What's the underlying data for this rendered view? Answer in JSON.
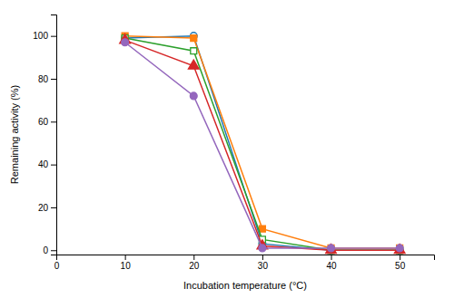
{
  "chart_data": {
    "type": "line",
    "xlabel": "Incubation temperature (°C)",
    "ylabel": "Remaining activity (%)",
    "x": [
      10,
      20,
      30,
      40,
      50
    ],
    "series": [
      {
        "values": [
          99,
          100,
          3,
          0,
          0
        ],
        "marker": "circle-open"
      },
      {
        "values": [
          100,
          99,
          10,
          1,
          1
        ],
        "marker": "square"
      },
      {
        "values": [
          99,
          93,
          5,
          0,
          0
        ],
        "marker": "square-open"
      },
      {
        "values": [
          98,
          86,
          2,
          0,
          0
        ],
        "marker": "triangle"
      },
      {
        "values": [
          97,
          72,
          1,
          1,
          1
        ],
        "marker": "circle"
      }
    ],
    "xlim": [
      0,
      55
    ],
    "ylim": [
      -2,
      110
    ],
    "xticks": [
      0,
      10,
      20,
      30,
      40,
      50
    ],
    "yticks": [
      0,
      20,
      40,
      60,
      80,
      100
    ],
    "grid": false
  }
}
